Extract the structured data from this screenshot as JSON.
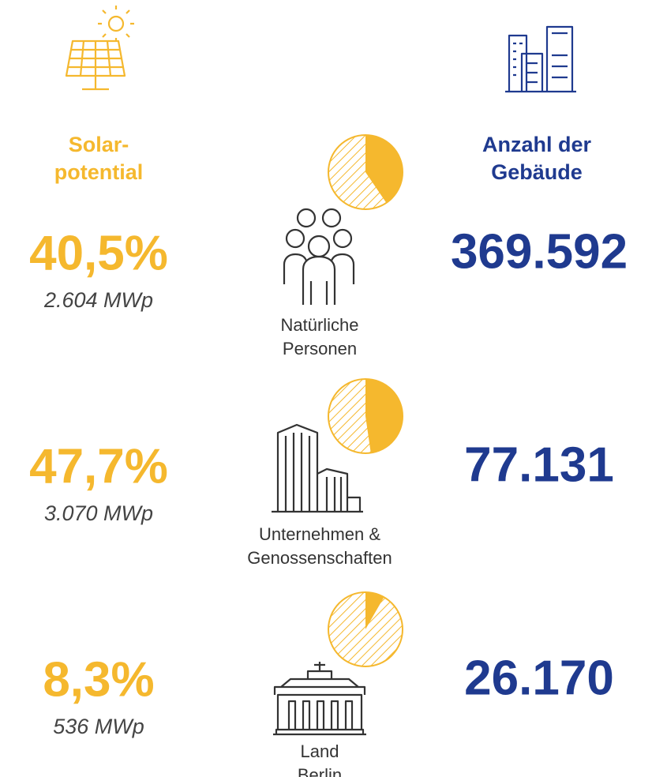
{
  "columns": {
    "left": [
      "Solar-",
      "potential"
    ],
    "right": [
      "Anzahl der",
      "Gebäude"
    ]
  },
  "rows": [
    {
      "share": 40.5,
      "share_label": "40,5%",
      "capacity": "2.604 MWp",
      "owner": [
        "Natürliche",
        "Personen"
      ],
      "buildings": "369.592"
    },
    {
      "share": 47.7,
      "share_label": "47,7%",
      "capacity": "3.070 MWp",
      "owner": [
        "Unternehmen &",
        "Genossenschaften"
      ],
      "buildings": "77.131"
    },
    {
      "share": 8.3,
      "share_label": "8,3%",
      "capacity": "536 MWp",
      "owner": [
        "Land",
        "Berlin"
      ],
      "buildings": "26.170"
    }
  ]
}
